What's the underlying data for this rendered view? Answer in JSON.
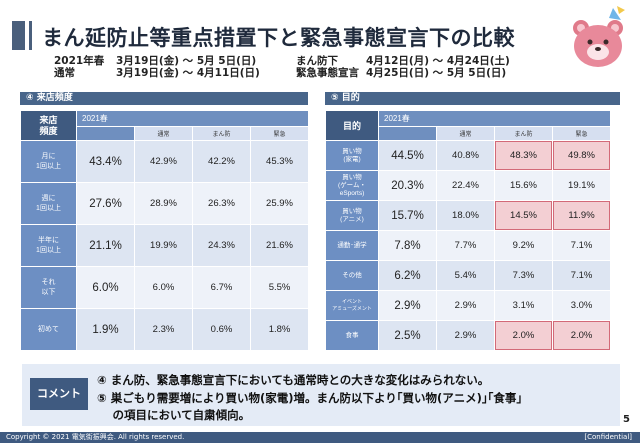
{
  "header": {
    "title": "まん延防止等重点措置下と緊急事態宣言下の比較"
  },
  "periods": {
    "left": [
      {
        "label": "2021年春",
        "value": "3月19日(金) ～ 5月 5日(日)"
      },
      {
        "label": "通常",
        "value": "3月19日(金) ～ 4月11日(日)"
      }
    ],
    "right": [
      {
        "label": "まん防下",
        "value": "4月12日(月) ～ 4月24日(土)"
      },
      {
        "label": "緊急事態宣言",
        "value": "4月25日(日) ～ 5月 5日(日)"
      }
    ]
  },
  "left_section": {
    "title": "④ 来店頻度",
    "corner": "来店\n頻度",
    "year": "2021春",
    "columns": [
      "通常",
      "まん防",
      "緊急"
    ],
    "rows": [
      {
        "label": "月に\n1回以上",
        "total": "43.4%",
        "values": [
          "42.9%",
          "42.2%",
          "45.3%"
        ]
      },
      {
        "label": "週に\n1回以上",
        "total": "27.6%",
        "values": [
          "28.9%",
          "26.3%",
          "25.9%"
        ]
      },
      {
        "label": "半年に\n1回以上",
        "total": "21.1%",
        "values": [
          "19.9%",
          "24.3%",
          "21.6%"
        ]
      },
      {
        "label": "それ\n以下",
        "total": "6.0%",
        "values": [
          "6.0%",
          "6.7%",
          "5.5%"
        ]
      },
      {
        "label": "初めて",
        "total": "1.9%",
        "values": [
          "2.3%",
          "0.6%",
          "1.8%"
        ]
      }
    ]
  },
  "right_section": {
    "title": "⑤ 目的",
    "corner": "目的",
    "year": "2021春",
    "columns": [
      "通常",
      "まん防",
      "緊急"
    ],
    "rows": [
      {
        "label": "買い物\n(家電)",
        "total": "44.5%",
        "values": [
          "40.8%",
          "48.3%",
          "49.8%"
        ]
      },
      {
        "label": "買い物\n(ゲーム・\neSports)",
        "total": "20.3%",
        "values": [
          "22.4%",
          "15.6%",
          "19.1%"
        ]
      },
      {
        "label": "買い物\n(アニメ)",
        "total": "15.7%",
        "values": [
          "18.0%",
          "14.5%",
          "11.9%"
        ]
      },
      {
        "label": "通勤･通学",
        "total": "7.8%",
        "values": [
          "7.7%",
          "9.2%",
          "7.1%"
        ]
      },
      {
        "label": "その他",
        "total": "6.2%",
        "values": [
          "5.4%",
          "7.3%",
          "7.1%"
        ]
      },
      {
        "label": "イベント\nアミューズメント",
        "total": "2.9%",
        "values": [
          "2.9%",
          "3.1%",
          "3.0%"
        ]
      },
      {
        "label": "食事",
        "total": "2.5%",
        "values": [
          "2.9%",
          "2.0%",
          "2.0%"
        ]
      }
    ]
  },
  "comment": {
    "tag": "コメント",
    "lines": [
      "④ まん防、緊急事態宣言下においても通常時との大きな変化はみられない。",
      "⑤ 巣ごもり需要増により買い物(家電)増。まん防以下より｢買い物(アニメ)｣｢食事｣",
      "　 の項目において自粛傾向。"
    ]
  },
  "page_number": "5",
  "footer": {
    "copyright": "Copyright © 2021 電気街振興会. All rights reserved.",
    "confidential": "[Confidential]"
  },
  "colors": {
    "header_navy": "#3f5a80",
    "row_header": "#6d8fc3",
    "cell_light": "#dde5f2",
    "highlight": "#f3cfd3"
  }
}
